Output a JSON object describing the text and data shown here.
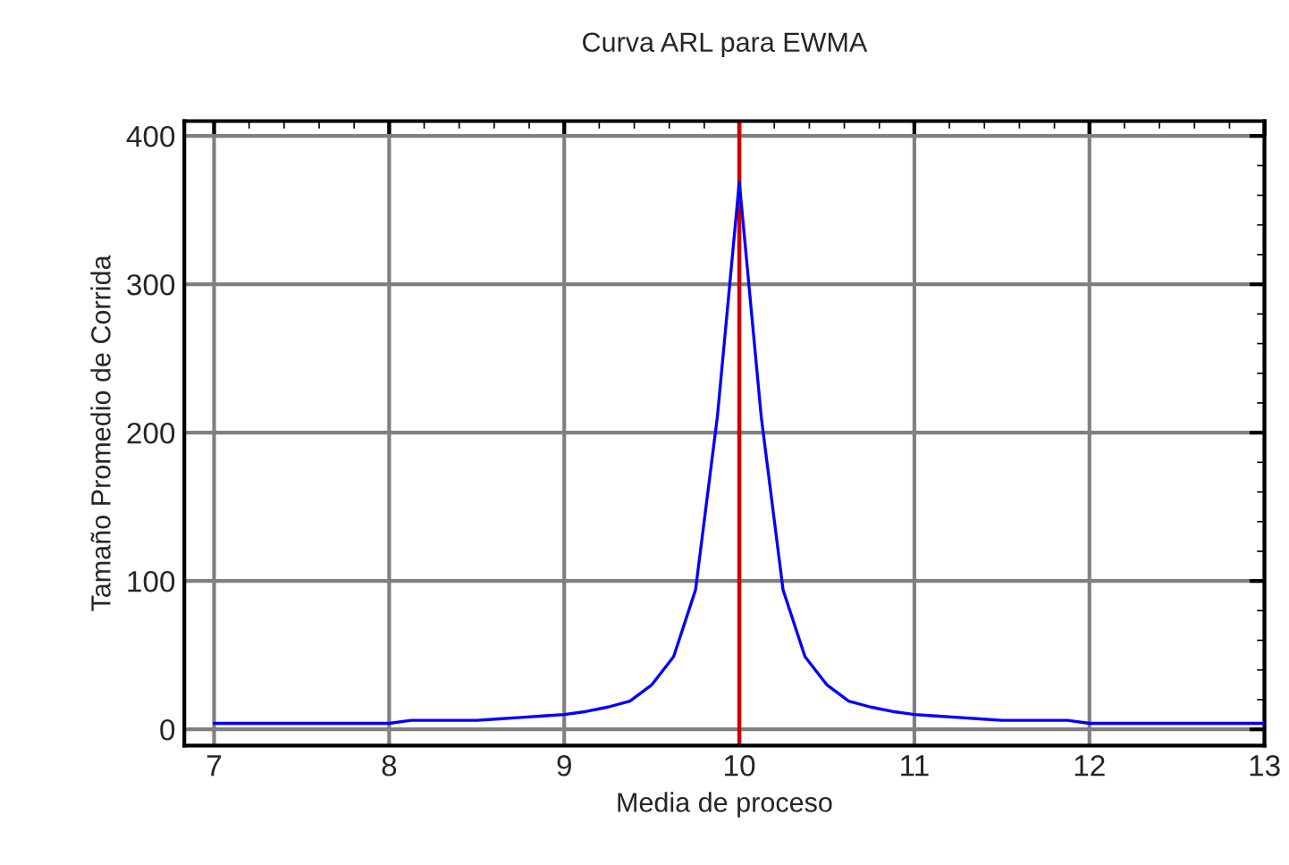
{
  "chart_data": {
    "type": "line",
    "title": "Curva ARL para EWMA",
    "xlabel": "Media de proceso",
    "ylabel": "Tamaño Promedio de Corrida",
    "series": [
      {
        "color": "#0000ff",
        "x": [
          7,
          7.5,
          8,
          8.125,
          8.5,
          8.625,
          8.75,
          8.875,
          9,
          9.125,
          9.25,
          9.375,
          9.5,
          9.625,
          9.75,
          9.875,
          10,
          10.125,
          10.25,
          10.375,
          10.5,
          10.625,
          10.75,
          10.875,
          11,
          11.125,
          11.25,
          11.375,
          11.5,
          11.875,
          12,
          13
        ],
        "values": [
          4,
          4,
          4,
          6,
          6,
          7,
          8,
          9,
          10,
          12,
          15,
          19,
          30,
          49,
          94,
          211,
          369,
          211,
          94,
          49,
          30,
          19,
          15,
          12,
          10,
          9,
          8,
          7,
          6,
          6,
          4,
          4
        ]
      }
    ],
    "xlim": [
      6.83,
      13
    ],
    "xticks": [
      7,
      8,
      9,
      10,
      11,
      12,
      13
    ],
    "ylim": [
      -11,
      410
    ],
    "yticks": [
      0,
      100,
      200,
      300,
      400
    ],
    "ref_lines": [
      {
        "axis": "x",
        "value": 10,
        "color": "#cc0000"
      }
    ],
    "grid": true,
    "legend": false,
    "marker": "none",
    "line_style": "solid"
  }
}
